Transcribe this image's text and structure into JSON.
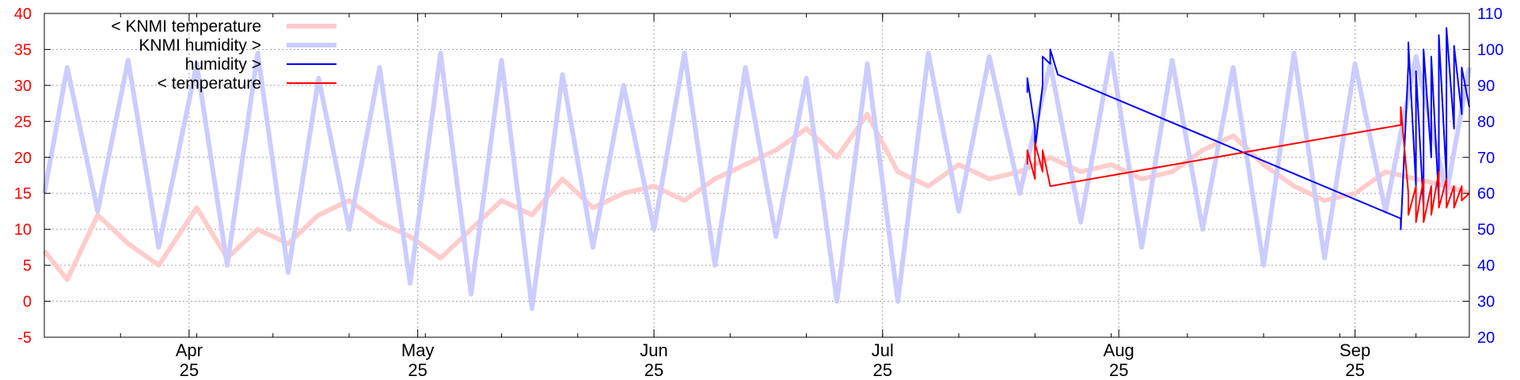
{
  "chart_data": {
    "type": "line",
    "title": "",
    "xlabel": "",
    "ylabel_left": "",
    "ylabel_right": "",
    "x_tick_labels": [
      {
        "month": "Apr",
        "year": "25",
        "date": "2025-04-01"
      },
      {
        "month": "May",
        "year": "25",
        "date": "2025-05-01"
      },
      {
        "month": "Jun",
        "year": "25",
        "date": "2025-06-01"
      },
      {
        "month": "Jul",
        "year": "25",
        "date": "2025-07-01"
      },
      {
        "month": "Aug",
        "year": "25",
        "date": "2025-08-01"
      },
      {
        "month": "Sep",
        "year": "25",
        "date": "2025-09-01"
      }
    ],
    "x_range": [
      "2025-03-13",
      "2025-09-16"
    ],
    "y_left": {
      "ticks": [
        -5,
        0,
        5,
        10,
        15,
        20,
        25,
        30,
        35,
        40
      ],
      "range": [
        -5,
        40
      ],
      "color": "#ff0000"
    },
    "y_right": {
      "ticks": [
        20,
        30,
        40,
        50,
        60,
        70,
        80,
        90,
        100,
        110
      ],
      "range": [
        20,
        110
      ],
      "color": "#0000ff"
    },
    "grid": true,
    "legend_position": "top-left",
    "series": [
      {
        "name": "< KNMI temperature",
        "axis": "left",
        "color": "#ffcccc",
        "style": "thick",
        "points": [
          [
            "2025-03-13",
            7
          ],
          [
            "2025-03-16",
            3
          ],
          [
            "2025-03-20",
            12
          ],
          [
            "2025-03-24",
            8
          ],
          [
            "2025-03-28",
            5
          ],
          [
            "2025-04-02",
            13
          ],
          [
            "2025-04-06",
            6
          ],
          [
            "2025-04-10",
            10
          ],
          [
            "2025-04-14",
            8
          ],
          [
            "2025-04-18",
            12
          ],
          [
            "2025-04-22",
            14
          ],
          [
            "2025-04-26",
            11
          ],
          [
            "2025-04-30",
            9
          ],
          [
            "2025-05-04",
            6
          ],
          [
            "2025-05-08",
            10
          ],
          [
            "2025-05-12",
            14
          ],
          [
            "2025-05-16",
            12
          ],
          [
            "2025-05-20",
            17
          ],
          [
            "2025-05-24",
            13
          ],
          [
            "2025-05-28",
            15
          ],
          [
            "2025-06-01",
            16
          ],
          [
            "2025-06-05",
            14
          ],
          [
            "2025-06-09",
            17
          ],
          [
            "2025-06-13",
            19
          ],
          [
            "2025-06-17",
            21
          ],
          [
            "2025-06-21",
            24
          ],
          [
            "2025-06-25",
            20
          ],
          [
            "2025-06-29",
            26
          ],
          [
            "2025-07-03",
            18
          ],
          [
            "2025-07-07",
            16
          ],
          [
            "2025-07-11",
            19
          ],
          [
            "2025-07-15",
            17
          ],
          [
            "2025-07-19",
            18
          ],
          [
            "2025-07-23",
            20
          ],
          [
            "2025-07-27",
            18
          ],
          [
            "2025-07-31",
            19
          ],
          [
            "2025-08-04",
            17
          ],
          [
            "2025-08-08",
            18
          ],
          [
            "2025-08-12",
            21
          ],
          [
            "2025-08-16",
            23
          ],
          [
            "2025-08-20",
            19
          ],
          [
            "2025-08-24",
            16
          ],
          [
            "2025-08-28",
            14
          ],
          [
            "2025-09-01",
            15
          ],
          [
            "2025-09-05",
            18
          ],
          [
            "2025-09-09",
            17
          ],
          [
            "2025-09-13",
            16
          ],
          [
            "2025-09-16",
            15
          ]
        ]
      },
      {
        "name": "KNMI humidity >",
        "axis": "right",
        "color": "#ccccff",
        "style": "thick",
        "points": [
          [
            "2025-03-13",
            60
          ],
          [
            "2025-03-16",
            95
          ],
          [
            "2025-03-20",
            55
          ],
          [
            "2025-03-24",
            97
          ],
          [
            "2025-03-28",
            45
          ],
          [
            "2025-04-02",
            96
          ],
          [
            "2025-04-06",
            40
          ],
          [
            "2025-04-10",
            99
          ],
          [
            "2025-04-14",
            38
          ],
          [
            "2025-04-18",
            92
          ],
          [
            "2025-04-22",
            50
          ],
          [
            "2025-04-26",
            95
          ],
          [
            "2025-04-30",
            35
          ],
          [
            "2025-05-04",
            99
          ],
          [
            "2025-05-08",
            32
          ],
          [
            "2025-05-12",
            97
          ],
          [
            "2025-05-16",
            28
          ],
          [
            "2025-05-20",
            93
          ],
          [
            "2025-05-24",
            45
          ],
          [
            "2025-05-28",
            90
          ],
          [
            "2025-06-01",
            50
          ],
          [
            "2025-06-05",
            99
          ],
          [
            "2025-06-09",
            40
          ],
          [
            "2025-06-13",
            95
          ],
          [
            "2025-06-17",
            48
          ],
          [
            "2025-06-21",
            92
          ],
          [
            "2025-06-25",
            30
          ],
          [
            "2025-06-29",
            96
          ],
          [
            "2025-07-03",
            30
          ],
          [
            "2025-07-07",
            99
          ],
          [
            "2025-07-11",
            55
          ],
          [
            "2025-07-15",
            98
          ],
          [
            "2025-07-19",
            60
          ],
          [
            "2025-07-23",
            96
          ],
          [
            "2025-07-27",
            52
          ],
          [
            "2025-07-31",
            99
          ],
          [
            "2025-08-04",
            45
          ],
          [
            "2025-08-08",
            97
          ],
          [
            "2025-08-12",
            50
          ],
          [
            "2025-08-16",
            95
          ],
          [
            "2025-08-20",
            40
          ],
          [
            "2025-08-24",
            99
          ],
          [
            "2025-08-28",
            42
          ],
          [
            "2025-09-01",
            96
          ],
          [
            "2025-09-05",
            55
          ],
          [
            "2025-09-09",
            98
          ],
          [
            "2025-09-13",
            60
          ],
          [
            "2025-09-16",
            95
          ]
        ]
      },
      {
        "name": "humidity >",
        "axis": "right",
        "color": "#0000ff",
        "style": "thin",
        "points": [
          [
            "2025-07-20",
            88
          ],
          [
            "2025-07-20",
            92
          ],
          [
            "2025-07-21",
            78
          ],
          [
            "2025-07-21",
            72
          ],
          [
            "2025-07-22",
            90
          ],
          [
            "2025-07-22",
            98
          ],
          [
            "2025-07-23",
            96
          ],
          [
            "2025-07-23",
            100
          ],
          [
            "2025-07-24",
            93
          ],
          [
            "2025-09-07",
            53
          ],
          [
            "2025-09-07",
            50
          ],
          [
            "2025-09-08",
            96
          ],
          [
            "2025-09-08",
            102
          ],
          [
            "2025-09-09",
            62
          ],
          [
            "2025-09-09",
            94
          ],
          [
            "2025-09-10",
            56
          ],
          [
            "2025-09-10",
            100
          ],
          [
            "2025-09-11",
            70
          ],
          [
            "2025-09-11",
            98
          ],
          [
            "2025-09-12",
            58
          ],
          [
            "2025-09-12",
            104
          ],
          [
            "2025-09-13",
            64
          ],
          [
            "2025-09-13",
            106
          ],
          [
            "2025-09-14",
            78
          ],
          [
            "2025-09-14",
            101
          ],
          [
            "2025-09-15",
            82
          ],
          [
            "2025-09-15",
            95
          ],
          [
            "2025-09-16",
            84
          ]
        ]
      },
      {
        "name": "< temperature",
        "axis": "left",
        "color": "#ff0000",
        "style": "thin",
        "points": [
          [
            "2025-07-20",
            19
          ],
          [
            "2025-07-20",
            21
          ],
          [
            "2025-07-21",
            17
          ],
          [
            "2025-07-21",
            22
          ],
          [
            "2025-07-22",
            18
          ],
          [
            "2025-07-22",
            21
          ],
          [
            "2025-07-23",
            16
          ],
          [
            "2025-09-07",
            24.5
          ],
          [
            "2025-09-07",
            27
          ],
          [
            "2025-09-08",
            15
          ],
          [
            "2025-09-08",
            12
          ],
          [
            "2025-09-09",
            16
          ],
          [
            "2025-09-09",
            11
          ],
          [
            "2025-09-10",
            17
          ],
          [
            "2025-09-10",
            11
          ],
          [
            "2025-09-11",
            16
          ],
          [
            "2025-09-11",
            12
          ],
          [
            "2025-09-12",
            18
          ],
          [
            "2025-09-12",
            13
          ],
          [
            "2025-09-13",
            17
          ],
          [
            "2025-09-13",
            13
          ],
          [
            "2025-09-14",
            16
          ],
          [
            "2025-09-14",
            13
          ],
          [
            "2025-09-15",
            16
          ],
          [
            "2025-09-15",
            14
          ],
          [
            "2025-09-16",
            15
          ]
        ]
      }
    ]
  }
}
